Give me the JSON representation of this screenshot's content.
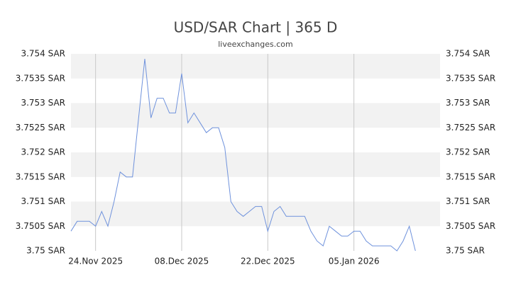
{
  "chart_data": {
    "type": "line",
    "title": "USD/SAR Chart | 365 D",
    "subtitle": "liveexchanges.com",
    "x": [
      "2025-11-20",
      "2025-11-21",
      "2025-11-22",
      "2025-11-23",
      "2025-11-24",
      "2025-11-25",
      "2025-11-26",
      "2025-11-27",
      "2025-11-28",
      "2025-11-29",
      "2025-11-30",
      "2025-12-01",
      "2025-12-02",
      "2025-12-03",
      "2025-12-04",
      "2025-12-05",
      "2025-12-06",
      "2025-12-07",
      "2025-12-08",
      "2025-12-09",
      "2025-12-10",
      "2025-12-11",
      "2025-12-12",
      "2025-12-13",
      "2025-12-14",
      "2025-12-15",
      "2025-12-16",
      "2025-12-17",
      "2025-12-18",
      "2025-12-19",
      "2025-12-20",
      "2025-12-21",
      "2025-12-22",
      "2025-12-23",
      "2025-12-24",
      "2025-12-25",
      "2025-12-26",
      "2025-12-27",
      "2025-12-28",
      "2025-12-29",
      "2025-12-30",
      "2025-12-31",
      "2026-01-01",
      "2026-01-02",
      "2026-01-03",
      "2026-01-04",
      "2026-01-05",
      "2026-01-06",
      "2026-01-07",
      "2026-01-08",
      "2026-01-09",
      "2026-01-10",
      "2026-01-11",
      "2026-01-12",
      "2026-01-13",
      "2026-01-14",
      "2026-01-15"
    ],
    "series": [
      {
        "name": "USD/SAR",
        "color": "#6f92dc",
        "values": [
          3.7504,
          3.7506,
          3.7506,
          3.7506,
          3.7505,
          3.7508,
          3.7505,
          3.751,
          3.7516,
          3.7515,
          3.7515,
          3.7527,
          3.7539,
          3.7527,
          3.7531,
          3.7531,
          3.7528,
          3.7528,
          3.7536,
          3.7526,
          3.7528,
          3.7526,
          3.7524,
          3.7525,
          3.7525,
          3.7521,
          3.751,
          3.7508,
          3.7507,
          3.7508,
          3.7509,
          3.7509,
          3.7504,
          3.7508,
          3.7509,
          3.7507,
          3.7507,
          3.7507,
          3.7507,
          3.7504,
          3.7502,
          3.7501,
          3.7505,
          3.7504,
          3.7503,
          3.7503,
          3.7504,
          3.7504,
          3.7502,
          3.7501,
          3.7501,
          3.7501,
          3.7501,
          3.75,
          3.7502,
          3.7505,
          3.75
        ]
      }
    ],
    "xlim": [
      "2025-11-20",
      "2026-01-19"
    ],
    "xticks": [
      {
        "value": "2025-11-24",
        "label": "24.Nov 2025"
      },
      {
        "value": "2025-12-08",
        "label": "08.Dec 2025"
      },
      {
        "value": "2025-12-22",
        "label": "22.Dec 2025"
      },
      {
        "value": "2026-01-05",
        "label": "05.Jan 2026"
      }
    ],
    "ylim": [
      3.75,
      3.754
    ],
    "yticks": [
      {
        "value": 3.75,
        "label": "3.75 SAR"
      },
      {
        "value": 3.7505,
        "label": "3.7505 SAR"
      },
      {
        "value": 3.751,
        "label": "3.751 SAR"
      },
      {
        "value": 3.7515,
        "label": "3.7515 SAR"
      },
      {
        "value": 3.752,
        "label": "3.752 SAR"
      },
      {
        "value": 3.7525,
        "label": "3.7525 SAR"
      },
      {
        "value": 3.753,
        "label": "3.753 SAR"
      },
      {
        "value": 3.7535,
        "label": "3.7535 SAR"
      },
      {
        "value": 3.754,
        "label": "3.754 SAR"
      }
    ],
    "grid": true
  }
}
